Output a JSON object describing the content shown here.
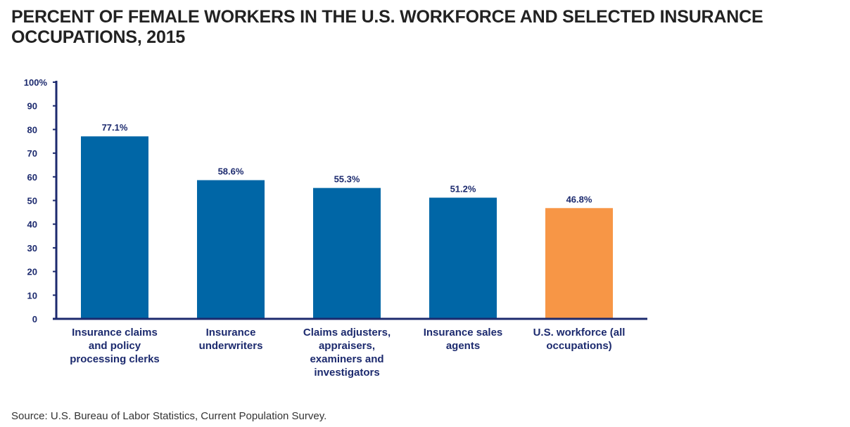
{
  "chart_data": {
    "type": "bar",
    "title": "PERCENT OF FEMALE WORKERS IN THE U.S. WORKFORCE AND SELECTED INSURANCE OCCUPATIONS, 2015",
    "categories": [
      [
        "Insurance claims",
        "and policy",
        "processing clerks"
      ],
      [
        "Insurance",
        "underwriters"
      ],
      [
        "Claims adjusters,",
        "appraisers,",
        "examiners and",
        "investigators"
      ],
      [
        "Insurance sales",
        "agents"
      ],
      [
        "U.S. workforce (all",
        "occupations)"
      ]
    ],
    "values": [
      77.1,
      58.6,
      55.3,
      51.2,
      46.8
    ],
    "data_labels": [
      "77.1%",
      "58.6%",
      "55.3%",
      "51.2%",
      "46.8%"
    ],
    "bar_colors": [
      "#0066a6",
      "#0066a6",
      "#0066a6",
      "#0066a6",
      "#f79646"
    ],
    "ylim": [
      0,
      100
    ],
    "yticks": [
      0,
      10,
      20,
      30,
      40,
      50,
      60,
      70,
      80,
      90,
      100
    ],
    "ytick_labels": [
      "0",
      "10",
      "20",
      "30",
      "40",
      "50",
      "60",
      "70",
      "80",
      "90",
      "100%"
    ],
    "xlabel": "",
    "ylabel": "",
    "grid": false,
    "axis_color": "#1c2a6e",
    "source": "Source: U.S. Bureau of Labor Statistics, Current Population Survey."
  }
}
